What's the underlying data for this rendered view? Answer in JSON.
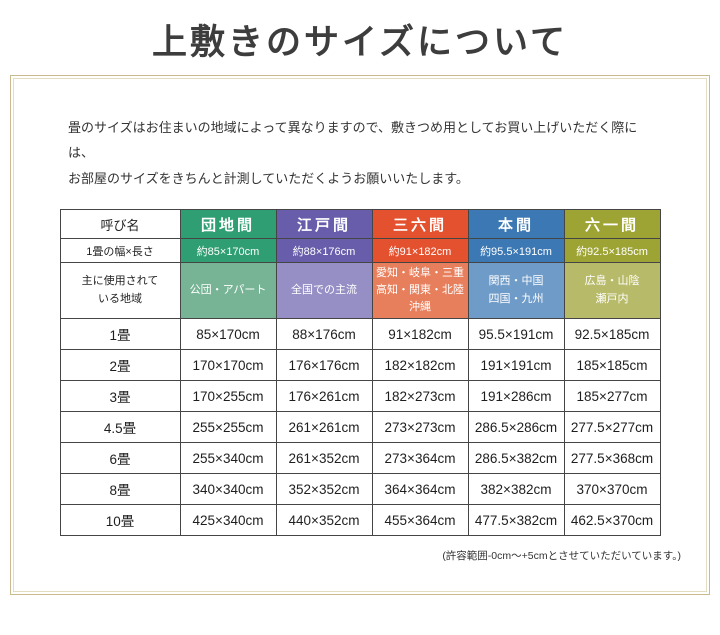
{
  "page": {
    "title": "上敷きのサイズについて",
    "intro": {
      "line1": "畳のサイズはお住まいの地域によって異なりますので、敷きつめ用としてお買い上げいただく際には、",
      "line2": "お部屋のサイズをきちんと計測していただくようお願いいたします。"
    },
    "footnote": "(許容範囲-0cm～+5cmとさせていただいています。)"
  },
  "table": {
    "corner_label": "呼び名",
    "size_row_label": "1畳の幅×長さ",
    "region_row_label": "主に使用されて\nいる地域",
    "columns": [
      {
        "name": "団地間",
        "header_color": "#2f9e72",
        "region_color": "#77b495",
        "size": "約85×170cm",
        "regions": "公団・アパート"
      },
      {
        "name": "江戸間",
        "header_color": "#675dab",
        "region_color": "#968fc5",
        "size": "約88×176cm",
        "regions": "全国での主流"
      },
      {
        "name": "三六間",
        "header_color": "#e4512f",
        "region_color": "#e87f5c",
        "size": "約91×182cm",
        "regions": "愛知・岐阜・三重\n高知・関東・北陸\n沖縄"
      },
      {
        "name": "本間",
        "header_color": "#3c78b4",
        "region_color": "#6f9bc8",
        "size": "約95.5×191cm",
        "regions": "関西・中国\n四国・九州"
      },
      {
        "name": "六一間",
        "header_color": "#9ea433",
        "region_color": "#b7ba68",
        "size": "約92.5×185cm",
        "regions": "広島・山陰\n瀬戸内"
      }
    ],
    "mat_rows": [
      {
        "label": "1畳",
        "values": [
          "85×170cm",
          "88×176cm",
          "91×182cm",
          "95.5×191cm",
          "92.5×185cm"
        ]
      },
      {
        "label": "2畳",
        "values": [
          "170×170cm",
          "176×176cm",
          "182×182cm",
          "191×191cm",
          "185×185cm"
        ]
      },
      {
        "label": "3畳",
        "values": [
          "170×255cm",
          "176×261cm",
          "182×273cm",
          "191×286cm",
          "185×277cm"
        ]
      },
      {
        "label": "4.5畳",
        "values": [
          "255×255cm",
          "261×261cm",
          "273×273cm",
          "286.5×286cm",
          "277.5×277cm"
        ]
      },
      {
        "label": "6畳",
        "values": [
          "255×340cm",
          "261×352cm",
          "273×364cm",
          "286.5×382cm",
          "277.5×368cm"
        ]
      },
      {
        "label": "8畳",
        "values": [
          "340×340cm",
          "352×352cm",
          "364×364cm",
          "382×382cm",
          "370×370cm"
        ]
      },
      {
        "label": "10畳",
        "values": [
          "425×340cm",
          "440×352cm",
          "455×364cm",
          "477.5×382cm",
          "462.5×370cm"
        ]
      }
    ]
  }
}
